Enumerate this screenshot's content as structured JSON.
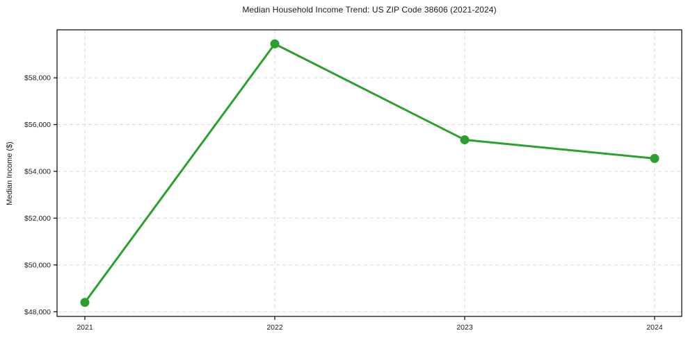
{
  "chart_data": {
    "type": "line",
    "title": "Median Household Income Trend: US ZIP Code 38606 (2021-2024)",
    "xlabel": "",
    "ylabel": "Median Income ($)",
    "x": [
      2021,
      2022,
      2023,
      2024
    ],
    "xtick_labels": [
      "2021",
      "2022",
      "2023",
      "2024"
    ],
    "series": [
      {
        "name": "Median Household Income",
        "values": [
          48400,
          59450,
          55350,
          54550
        ]
      }
    ],
    "yticks": [
      48000,
      50000,
      52000,
      54000,
      56000,
      58000
    ],
    "ytick_labels": [
      "$48,000",
      "$50,000",
      "$52,000",
      "$54,000",
      "$56,000",
      "$58,000"
    ],
    "ylim": [
      47800,
      60050
    ],
    "grid": true,
    "grid_style": "dashed",
    "legend": false,
    "colors": {
      "line": "#2ca02c",
      "marker": "#2ca02c",
      "grid": "#d9d9d9",
      "axis": "#000000",
      "text": "#1a1a1a",
      "background": "#ffffff"
    }
  }
}
